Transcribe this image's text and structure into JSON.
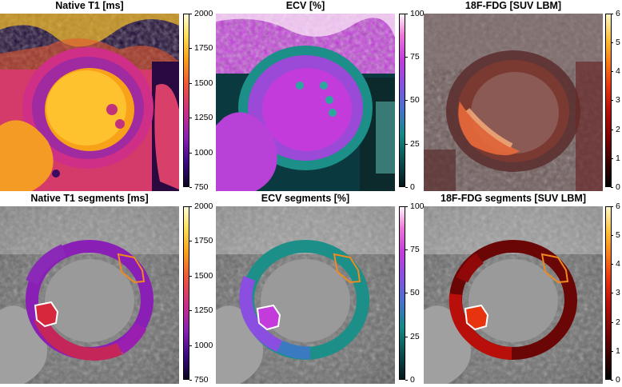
{
  "panels": {
    "t1_map": {
      "title": "Native T1 [ms]",
      "colormap": [
        "#0b0424",
        "#3a0b82",
        "#8a1fb5",
        "#cf2f87",
        "#f05a33",
        "#f8a21a",
        "#fde25a",
        "#fffbd8"
      ],
      "ticks": [
        "2000",
        "1750",
        "1500",
        "1250",
        "1000",
        "750"
      ]
    },
    "ecv_map": {
      "title": "ECV [%]",
      "colormap": [
        "#04181c",
        "#0a4a4c",
        "#128a86",
        "#4b6fd0",
        "#8a4ee0",
        "#c43bdc",
        "#ee78d8",
        "#fff5fb"
      ],
      "ticks": [
        "100",
        "75",
        "50",
        "25",
        "0"
      ]
    },
    "fdg_map": {
      "title": "18F-FDG [SUV LBM]",
      "colormap": [
        "#000000",
        "#3a0000",
        "#7a0404",
        "#b80f0a",
        "#e8330f",
        "#f97b14",
        "#fdc23a",
        "#fff6c8"
      ],
      "ticks": [
        "6",
        "5",
        "4",
        "3",
        "2",
        "1",
        "0"
      ]
    },
    "t1_segments": {
      "title": "Native T1 segments [ms]",
      "ticks": [
        "2000",
        "1750",
        "1500",
        "1250",
        "1000",
        "750"
      ]
    },
    "ecv_segments": {
      "title": "ECV segments [%]",
      "ticks": [
        "100",
        "75",
        "50",
        "25",
        "0"
      ]
    },
    "fdg_segments": {
      "title": "18F-FDG segments [SUV LBM]",
      "ticks": [
        "6",
        "5",
        "4",
        "3",
        "2",
        "1",
        "0"
      ]
    }
  },
  "roi_colors": {
    "remote": "#f08a1e",
    "lesion": "#ffffff"
  }
}
